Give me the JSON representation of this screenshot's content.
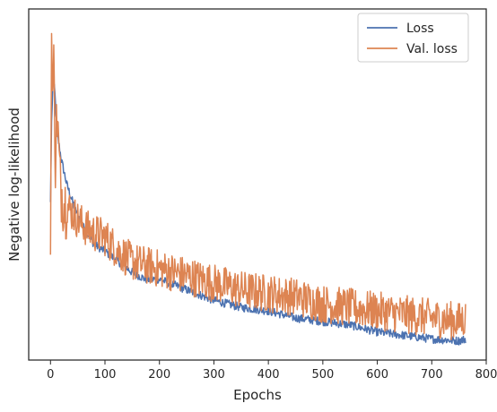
{
  "chart_data": {
    "type": "line",
    "title": "",
    "xlabel": "Epochs",
    "ylabel": "Negative log-likelihood",
    "xlim": [
      -40,
      800
    ],
    "ylim": [
      0,
      1
    ],
    "x_ticks": [
      0,
      100,
      200,
      300,
      400,
      500,
      600,
      700,
      800
    ],
    "y_ticks_shown": false,
    "grid": false,
    "legend_position": "top-right",
    "n_epochs": 763,
    "series": [
      {
        "name": "Loss",
        "color": "#4c72b0",
        "keypoints": [
          [
            0,
            0.45
          ],
          [
            2,
            0.68
          ],
          [
            5,
            0.8
          ],
          [
            8,
            0.76
          ],
          [
            12,
            0.65
          ],
          [
            20,
            0.57
          ],
          [
            30,
            0.5
          ],
          [
            45,
            0.43
          ],
          [
            60,
            0.38
          ],
          [
            80,
            0.33
          ],
          [
            100,
            0.31
          ],
          [
            125,
            0.28
          ],
          [
            150,
            0.25
          ],
          [
            175,
            0.23
          ],
          [
            200,
            0.23
          ],
          [
            250,
            0.2
          ],
          [
            300,
            0.17
          ],
          [
            350,
            0.15
          ],
          [
            400,
            0.14
          ],
          [
            450,
            0.12
          ],
          [
            500,
            0.11
          ],
          [
            550,
            0.1
          ],
          [
            600,
            0.08
          ],
          [
            650,
            0.07
          ],
          [
            700,
            0.06
          ],
          [
            750,
            0.055
          ],
          [
            763,
            0.06
          ]
        ]
      },
      {
        "name": "Val. loss",
        "color": "#dd8452",
        "keypoints": [
          [
            0,
            0.3
          ],
          [
            2,
            0.93
          ],
          [
            4,
            0.75
          ],
          [
            6,
            0.83
          ],
          [
            9,
            0.58
          ],
          [
            12,
            0.7
          ],
          [
            18,
            0.5
          ],
          [
            25,
            0.45
          ],
          [
            35,
            0.43
          ],
          [
            50,
            0.4
          ],
          [
            70,
            0.37
          ],
          [
            100,
            0.35
          ],
          [
            125,
            0.31
          ],
          [
            150,
            0.28
          ],
          [
            175,
            0.27
          ],
          [
            200,
            0.26
          ],
          [
            250,
            0.24
          ],
          [
            300,
            0.22
          ],
          [
            350,
            0.2
          ],
          [
            400,
            0.19
          ],
          [
            450,
            0.18
          ],
          [
            500,
            0.16
          ],
          [
            550,
            0.15
          ],
          [
            600,
            0.14
          ],
          [
            650,
            0.13
          ],
          [
            700,
            0.12
          ],
          [
            750,
            0.11
          ],
          [
            763,
            0.12
          ]
        ]
      }
    ]
  }
}
